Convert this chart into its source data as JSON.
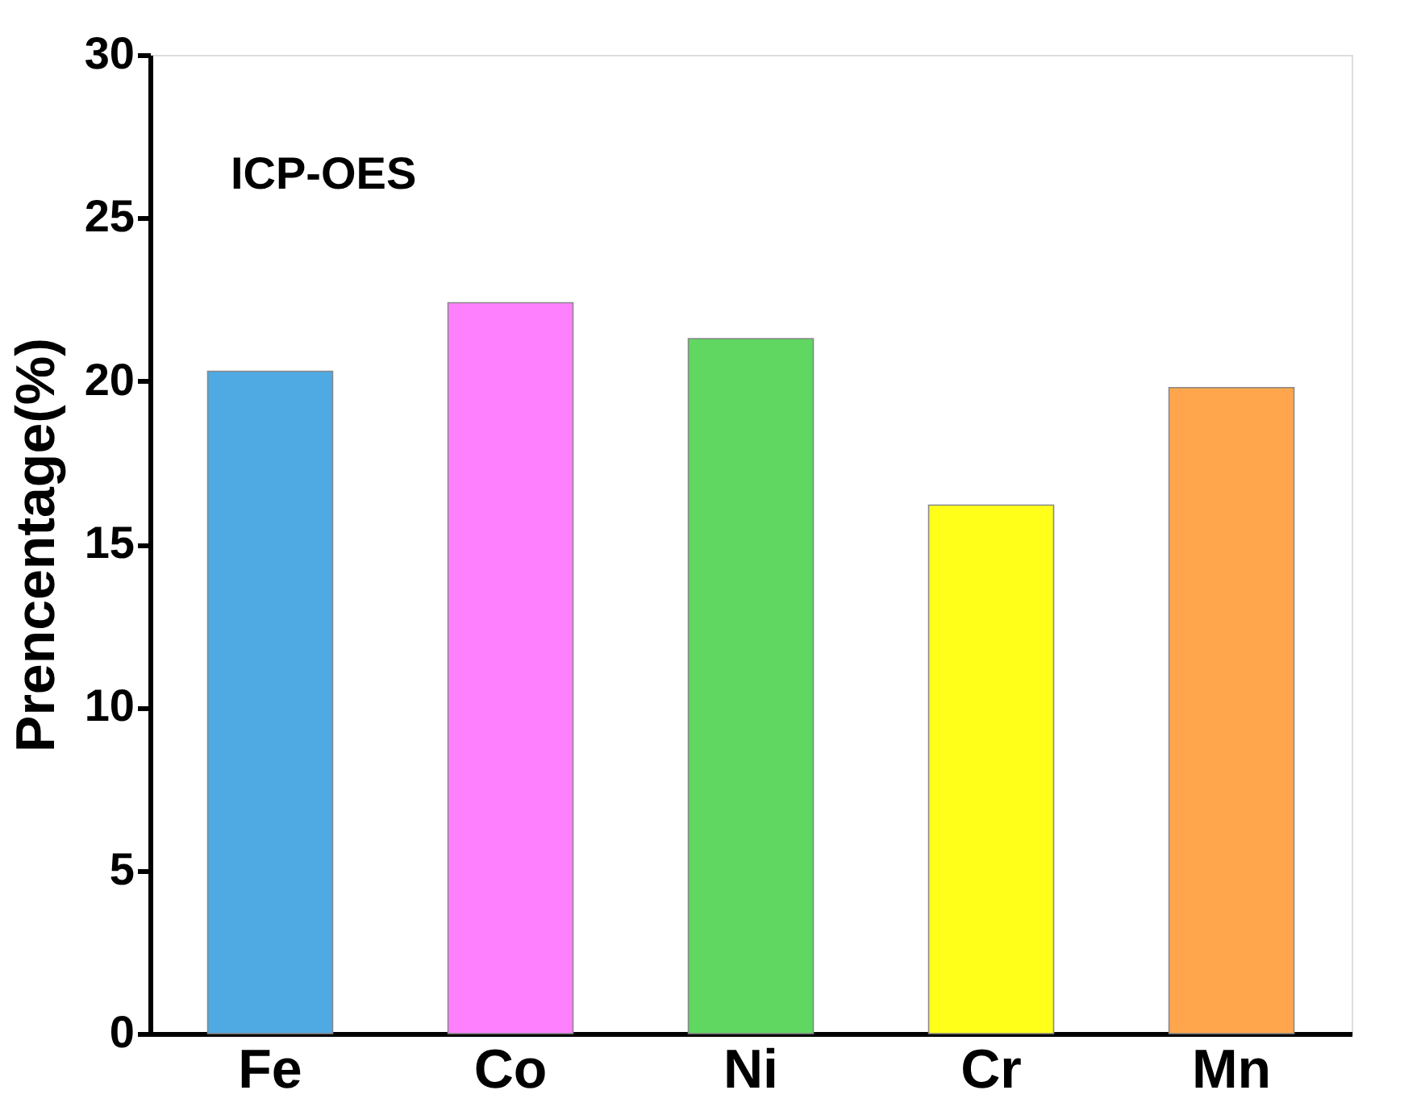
{
  "chart_data": {
    "type": "bar",
    "ylabel": "Prencentage(%)",
    "annotations": [
      "ICP-OES"
    ],
    "categories": [
      "Fe",
      "Co",
      "Ni",
      "Cr",
      "Mn"
    ],
    "values": [
      20.3,
      22.4,
      21.3,
      16.2,
      19.8
    ],
    "colors": [
      "#4fa9e2",
      "#ff80ff",
      "#5fd760",
      "#ffff19",
      "#ffa64d"
    ],
    "ylim": [
      0,
      30
    ],
    "yticks": [
      0,
      5,
      10,
      15,
      20,
      25,
      30
    ],
    "grid": false
  }
}
